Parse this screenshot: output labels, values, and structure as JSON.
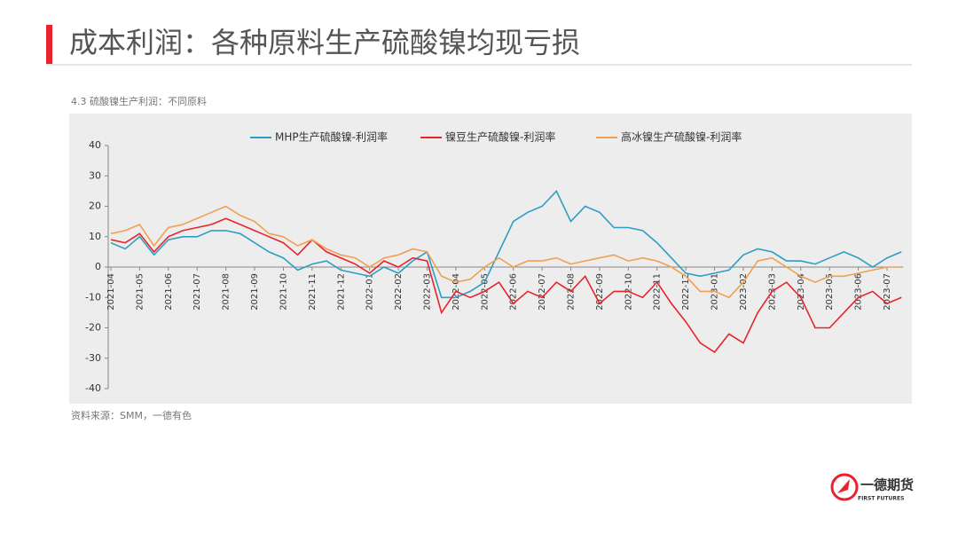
{
  "header": {
    "title": "成本利润：各种原料生产硫酸镍均现亏损"
  },
  "chart_data": {
    "type": "line",
    "title": "4.3 硫酸镍生产利润：不同原料",
    "source": "资料来源：SMM，一德有色",
    "categories": [
      "2021-04",
      null,
      "2021-05",
      null,
      "2021-06",
      null,
      "2021-07",
      null,
      "2021-08",
      null,
      "2021-09",
      null,
      "2021-10",
      null,
      "2021-11",
      null,
      "2021-12",
      null,
      "2022-01",
      null,
      "2022-02",
      null,
      "2022-03",
      null,
      "2022-04",
      null,
      "2022-05",
      null,
      "2022-06",
      null,
      "2022-07",
      null,
      "2022-08",
      null,
      "2022-09",
      null,
      "2022-10",
      null,
      "2022-11",
      null,
      "2022-12",
      null,
      "2023-01",
      null,
      "2023-02",
      null,
      "2023-03",
      null,
      "2023-04",
      null,
      "2023-05",
      null,
      "2023-06",
      null,
      "2023-07",
      null
    ],
    "series": [
      {
        "name": "MHP生产硫酸镍-利润率",
        "color": "#2e9ec4",
        "values": [
          8,
          6,
          10,
          4,
          9,
          10,
          10,
          12,
          12,
          11,
          8,
          5,
          3,
          -1,
          1,
          2,
          -1,
          -2,
          -3,
          0,
          -2,
          2,
          5,
          -10,
          -10,
          -8,
          -5,
          5,
          15,
          18,
          20,
          25,
          15,
          20,
          18,
          13,
          13,
          12,
          8,
          3,
          -2,
          -3,
          -2,
          -1,
          4,
          6,
          5,
          2,
          2,
          1,
          3,
          5,
          3,
          0,
          3,
          5
        ]
      },
      {
        "name": "镍豆生产硫酸镍-利润率",
        "color": "#e8232b",
        "values": [
          9,
          8,
          11,
          5,
          10,
          12,
          13,
          14,
          16,
          14,
          12,
          10,
          8,
          4,
          9,
          5,
          3,
          1,
          -2,
          2,
          0,
          3,
          2,
          -15,
          -8,
          -10,
          -8,
          -5,
          -12,
          -8,
          -10,
          -5,
          -8,
          -3,
          -12,
          -8,
          -8,
          -10,
          -5,
          -12,
          -18,
          -25,
          -28,
          -22,
          -25,
          -15,
          -8,
          -5,
          -10,
          -20,
          -20,
          -15,
          -10,
          -8,
          -12,
          -10
        ]
      },
      {
        "name": "高冰镍生产硫酸镍-利润率",
        "color": "#f0a050",
        "values": [
          11,
          12,
          14,
          7,
          13,
          14,
          16,
          18,
          20,
          17,
          15,
          11,
          10,
          7,
          9,
          6,
          4,
          3,
          0,
          3,
          4,
          6,
          5,
          -3,
          -5,
          -4,
          0,
          3,
          0,
          2,
          2,
          3,
          1,
          2,
          3,
          4,
          2,
          3,
          2,
          0,
          -3,
          -8,
          -8,
          -10,
          -5,
          2,
          3,
          0,
          -3,
          -5,
          -3,
          -3,
          -2,
          -1,
          0,
          0
        ]
      }
    ],
    "ylim": [
      -40,
      40
    ],
    "yticks": [
      -40,
      -30,
      -20,
      -10,
      0,
      10,
      20,
      30,
      40
    ],
    "legend": "top"
  },
  "logo": {
    "name": "一德期货",
    "subtitle": "FIRST FUTURES"
  }
}
